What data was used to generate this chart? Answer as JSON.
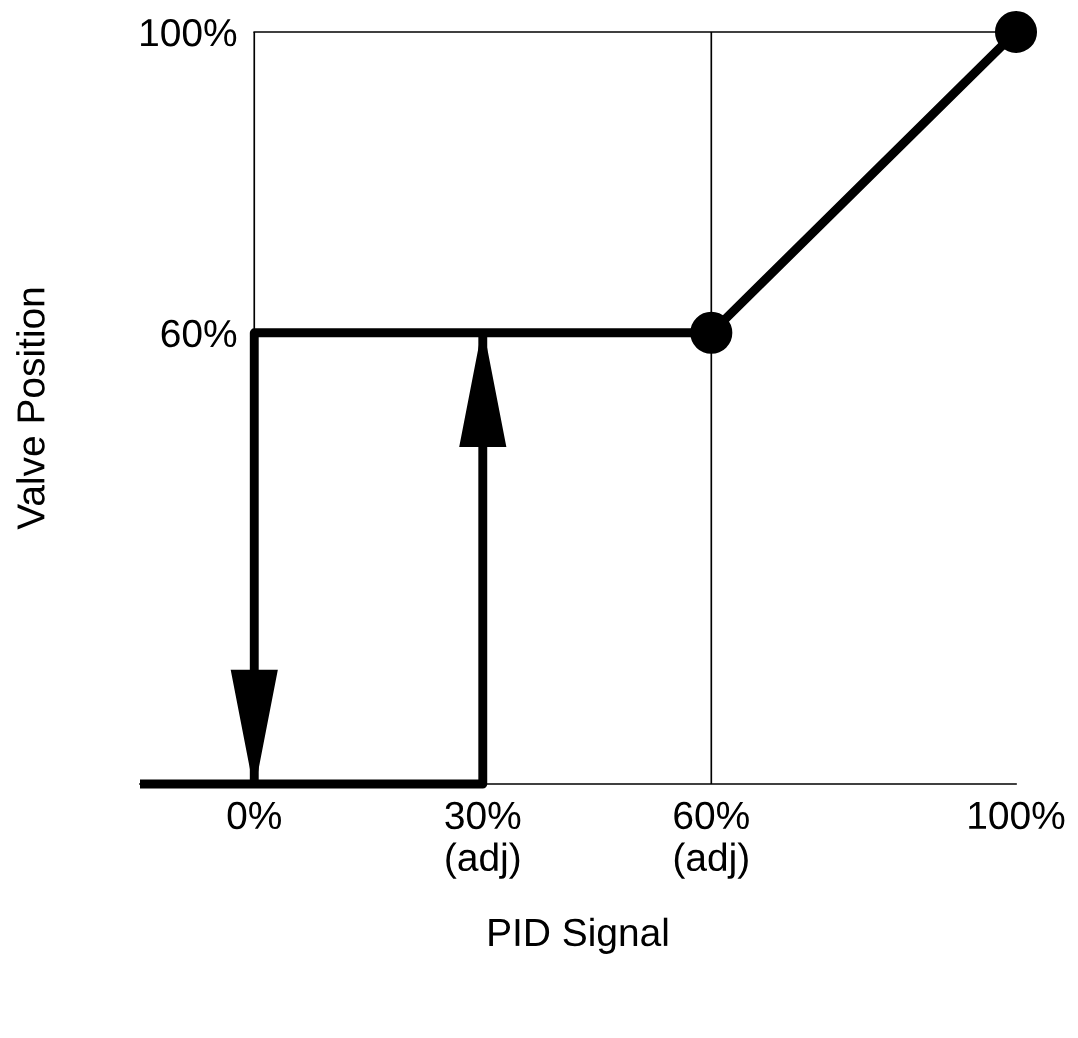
{
  "chart_data": {
    "type": "line",
    "xlabel": "PID Signal",
    "ylabel": "Valve Position",
    "series": [
      {
        "x": [
          -15,
          30,
          30
        ],
        "values": [
          0,
          0,
          60
        ],
        "color": "#000000"
      },
      {
        "x": [
          100,
          60,
          0,
          0
        ],
        "values": [
          100,
          60,
          60,
          0
        ],
        "color": "#000000"
      },
      {
        "type": "scatter",
        "x": [
          60,
          100
        ],
        "values": [
          60,
          100
        ],
        "color": "#000000",
        "marker": "circle"
      }
    ],
    "xlim": [
      -15,
      100
    ],
    "ylim": [
      0,
      100
    ],
    "xticks": [
      {
        "value": 0,
        "label": "0%"
      },
      {
        "value": 30,
        "label": "30%\n(adj)"
      },
      {
        "value": 60,
        "label": "60%\n(adj)"
      },
      {
        "value": 100,
        "label": "100%"
      }
    ],
    "yticks": [
      {
        "value": 60,
        "label": "60%"
      },
      {
        "value": 100,
        "label": "100%"
      }
    ],
    "ref_lines": [
      {
        "axis": "x",
        "value": 0
      },
      {
        "axis": "x",
        "value": 60
      }
    ],
    "grid": false,
    "legend": false,
    "marker": "none",
    "line_style": "solid"
  }
}
